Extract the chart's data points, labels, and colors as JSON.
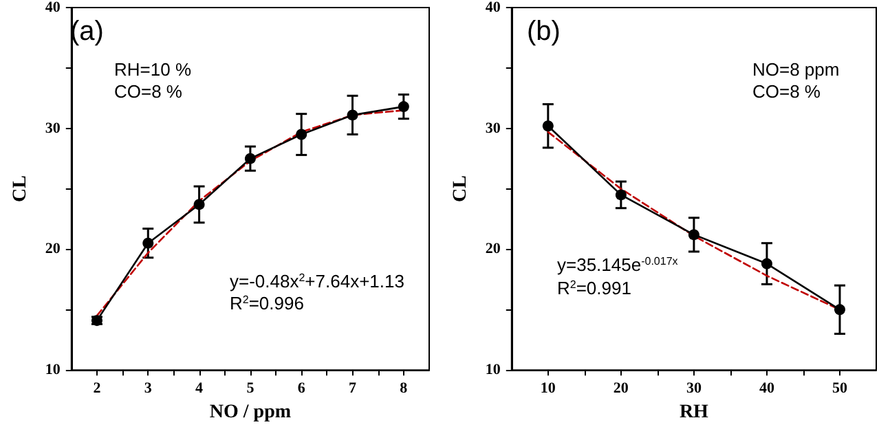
{
  "chart_data": [
    {
      "type": "line",
      "xlabel": "NO / ppm",
      "ylabel": "CL",
      "xlim": [
        1.5,
        8.5
      ],
      "xticks": [
        2,
        {
          "value": 2.5,
          "label": null
        },
        3,
        {
          "value": 3.5,
          "label": null
        },
        4,
        {
          "value": 4.5,
          "label": null
        },
        5,
        {
          "value": 5.5,
          "label": null
        },
        6,
        {
          "value": 6.5,
          "label": null
        },
        7,
        {
          "value": 7.5,
          "label": null
        },
        8
      ],
      "ylim": [
        10,
        40
      ],
      "yticks": [
        10,
        {
          "value": 15,
          "label": null
        },
        20,
        {
          "value": 25,
          "label": null
        },
        30,
        {
          "value": 35,
          "label": null
        },
        40
      ],
      "annotations": [
        "(a)",
        "RH=10 %",
        "CO=8 %",
        "y=-0.48x$^{2}$+7.64x+1.13",
        "R$^{2}$=0.996"
      ],
      "series": [
        {
          "color": "#000000",
          "x": [
            2,
            3,
            4,
            5,
            6,
            7,
            8
          ],
          "values": [
            14.1,
            20.5,
            23.7,
            27.5,
            29.5,
            31.1,
            31.8
          ],
          "errors": [
            0.3,
            1.2,
            1.5,
            1.0,
            1.7,
            1.6,
            1.0
          ],
          "marker": "circle",
          "line_style": "solid"
        },
        {
          "type": "line",
          "color": "#c00000",
          "x": [
            2,
            3,
            4,
            5,
            6,
            7,
            8
          ],
          "values": [
            14.5,
            19.7,
            24.0,
            27.3,
            29.7,
            31.1,
            31.5
          ],
          "marker": "none",
          "line_style": "dashed"
        }
      ]
    },
    {
      "type": "line",
      "xlabel": "RH",
      "ylabel": "CL",
      "xlim": [
        5,
        55
      ],
      "xticks": [
        10,
        {
          "value": 15,
          "label": null
        },
        20,
        {
          "value": 25,
          "label": null
        },
        30,
        {
          "value": 35,
          "label": null
        },
        40,
        {
          "value": 45,
          "label": null
        },
        50
      ],
      "ylim": [
        10,
        40
      ],
      "yticks": [
        10,
        {
          "value": 15,
          "label": null
        },
        20,
        {
          "value": 25,
          "label": null
        },
        30,
        {
          "value": 35,
          "label": null
        },
        40
      ],
      "annotations": [
        "(b)",
        "NO=8 ppm",
        "CO=8 %",
        "y=35.145e$^{-0.017x}$",
        "R$^{2}$=0.991"
      ],
      "series": [
        {
          "color": "#000000",
          "x": [
            10,
            20,
            30,
            40,
            50
          ],
          "values": [
            30.2,
            24.5,
            21.2,
            18.8,
            15.0
          ],
          "errors": [
            1.8,
            1.1,
            1.4,
            1.7,
            2.0
          ],
          "marker": "circle",
          "line_style": "solid"
        },
        {
          "type": "line",
          "color": "#c00000",
          "x": [
            10,
            20,
            30,
            40,
            50
          ],
          "values": [
            29.7,
            25.0,
            21.1,
            17.8,
            15.0
          ],
          "marker": "none",
          "line_style": "dashed"
        }
      ]
    }
  ]
}
